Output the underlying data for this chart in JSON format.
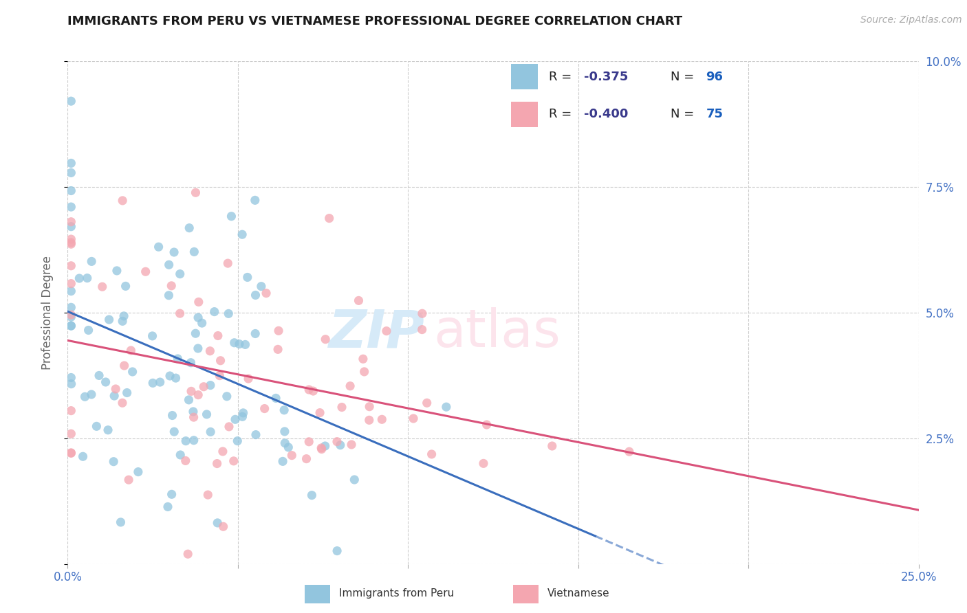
{
  "title": "IMMIGRANTS FROM PERU VS VIETNAMESE PROFESSIONAL DEGREE CORRELATION CHART",
  "source": "Source: ZipAtlas.com",
  "ylabel_label": "Professional Degree",
  "xlim": [
    0.0,
    0.25
  ],
  "ylim": [
    0.0,
    0.1
  ],
  "peru_color": "#92c5de",
  "viet_color": "#f4a6b0",
  "peru_line_color": "#3a6ebd",
  "viet_line_color": "#d9527a",
  "watermark_zip_color": "#d6eaf8",
  "watermark_atlas_color": "#fce4ec",
  "background_color": "#ffffff",
  "grid_color": "#cccccc",
  "tick_color": "#4472c4",
  "legend_r_peru": "-0.375",
  "legend_n_peru": "96",
  "legend_r_viet": "-0.400",
  "legend_n_viet": "75",
  "r_color": "#3a3a8c",
  "n_color": "#1a5fbd"
}
